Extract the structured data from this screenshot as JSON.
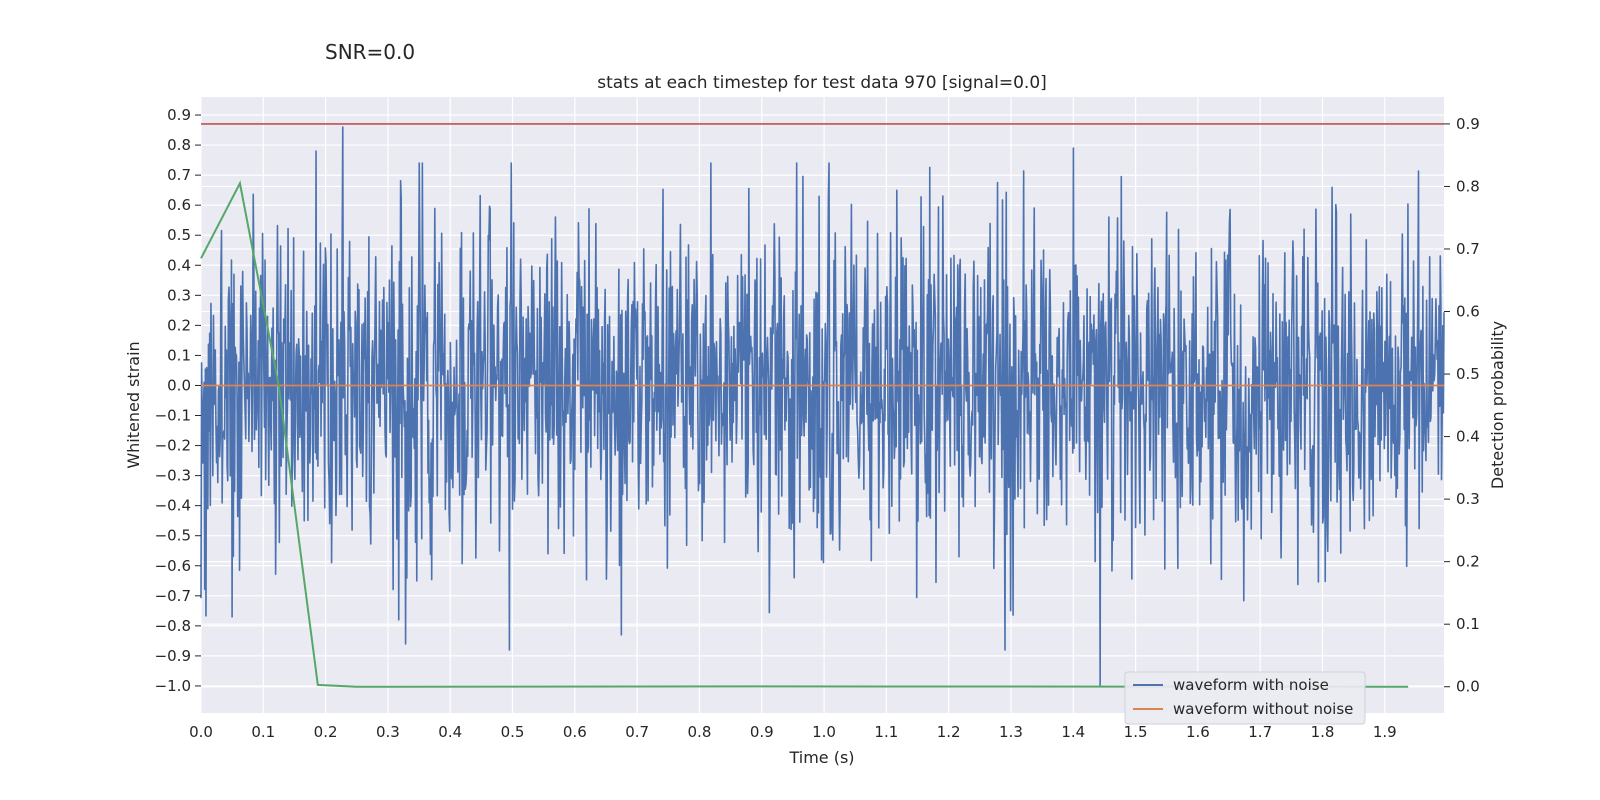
{
  "figure": {
    "suptitle": "SNR=0.0"
  },
  "chart_data": {
    "type": "line",
    "title": "stats at each timestep for test data 970 [signal=0.0]",
    "xlabel": "Time (s)",
    "ylabel": "Whitened strain",
    "y2label": "Detection probability",
    "xlim": [
      0.0,
      1.995
    ],
    "ylim": [
      -1.09,
      0.96
    ],
    "y2lim": [
      -0.042,
      0.943
    ],
    "xticks": [
      "0.0",
      "0.1",
      "0.2",
      "0.3",
      "0.4",
      "0.5",
      "0.6",
      "0.7",
      "0.8",
      "0.9",
      "1.0",
      "1.1",
      "1.2",
      "1.3",
      "1.4",
      "1.5",
      "1.6",
      "1.7",
      "1.8",
      "1.9"
    ],
    "yticks": [
      "0.9",
      "0.8",
      "0.7",
      "0.6",
      "0.5",
      "0.4",
      "0.3",
      "0.2",
      "0.1",
      "0.0",
      "−0.1",
      "−0.2",
      "−0.3",
      "−0.4",
      "−0.5",
      "−0.6",
      "−0.7",
      "−0.8",
      "−0.9",
      "−1.0"
    ],
    "y2ticks": [
      "0.9",
      "0.8",
      "0.7",
      "0.6",
      "0.5",
      "0.4",
      "0.3",
      "0.2",
      "0.1",
      "0.0"
    ],
    "grid": true,
    "legend_position": "lower-right",
    "series": [
      {
        "name": "waveform with noise",
        "color": "#4c72b0",
        "axis": "left",
        "kind": "noise",
        "n_points": 2000,
        "x_range": [
          0.0,
          1.995
        ],
        "noise_std": 0.27,
        "peaks": [
          {
            "x": 0.185,
            "y": 0.78
          },
          {
            "x": 0.228,
            "y": 0.86
          },
          {
            "x": 0.35,
            "y": 0.74
          },
          {
            "x": 1.4,
            "y": 0.79
          },
          {
            "x": 1.443,
            "y": -1.0
          },
          {
            "x": 0.328,
            "y": -0.86
          },
          {
            "x": 0.495,
            "y": -0.88
          },
          {
            "x": 1.29,
            "y": -0.88
          },
          {
            "x": 0.05,
            "y": -0.77
          },
          {
            "x": 0.675,
            "y": -0.83
          }
        ]
      },
      {
        "name": "waveform without noise",
        "color": "#dd8452",
        "axis": "left",
        "x": [
          0.0,
          1.995
        ],
        "values": [
          0.0,
          0.0
        ]
      },
      {
        "name": "",
        "color": "#55a868",
        "axis": "right",
        "x": [
          0.0,
          0.0625,
          0.125,
          0.1875,
          0.25,
          0.875,
          1.9375
        ],
        "values": [
          0.685,
          0.805,
          0.48,
          0.003,
          0.0,
          0.0005,
          0.0
        ]
      }
    ],
    "threshold": {
      "axis": "right",
      "value": 0.9,
      "color": "#c44e52"
    }
  }
}
